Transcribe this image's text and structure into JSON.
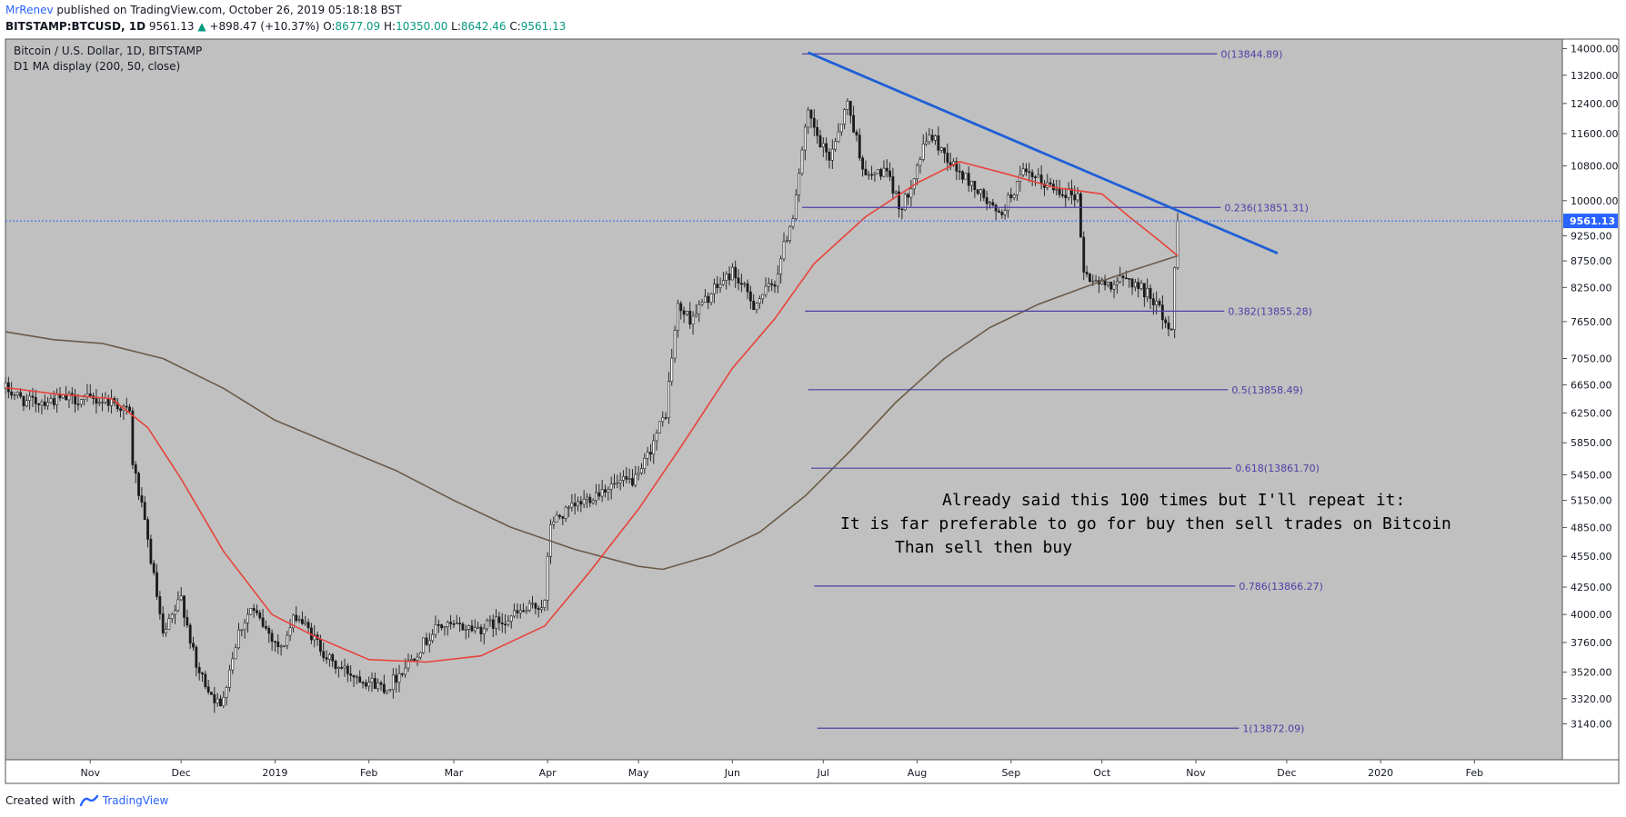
{
  "header": {
    "author": "MrRenev",
    "published": "published on TradingView.com, October 26, 2019 05:18:18 BST",
    "symbol": "BITSTAMP:BTCUSD, 1D",
    "last": "9561.13",
    "arrow": "▲",
    "change": "+898.47 (+10.37%)",
    "o_label": "O:",
    "o_val": "8677.09",
    "h_label": "H:",
    "h_val": "10350.00",
    "l_label": "L:",
    "l_val": "8642.46",
    "c_label": "C:",
    "c_val": "9561.13"
  },
  "legend": {
    "title": "Bitcoin / U.S. Dollar, 1D, BITSTAMP",
    "indicator": "D1 MA display (200, 50, close)"
  },
  "footer": {
    "created": "Created with",
    "brand": "TradingView"
  },
  "colors": {
    "plot_bg": "#c0c0c0",
    "candle": "#1a1a1a",
    "ma50": "#e8433a",
    "ma200": "#6b5a48",
    "trendline": "#1f5fd6",
    "fib": "#4b3fa6",
    "price_line": "#2962ff",
    "price_badge": "#2962ff"
  },
  "chart_data": {
    "type": "candlestick",
    "title": "Bitcoin / U.S. Dollar, 1D, BITSTAMP",
    "subtitle": "D1 MA display (200, 50, close)",
    "x_range": [
      "2018-10-04",
      "2020-03-01"
    ],
    "ylim": [
      2900,
      14300
    ],
    "y_ticks": [
      3140,
      3320,
      3520,
      3760,
      4000,
      4250,
      4550,
      4850,
      5150,
      5450,
      5850,
      6250,
      6650,
      7050,
      7650,
      8250,
      8750,
      9250,
      10000,
      10800,
      11600,
      12400,
      13200,
      14000
    ],
    "y_tick_labels": [
      "3140.00",
      "3320.00",
      "3520.00",
      "3760.00",
      "4000.00",
      "4250.00",
      "4550.00",
      "4850.00",
      "5150.00",
      "5450.00",
      "5850.00",
      "6250.00",
      "6650.00",
      "7050.00",
      "7650.00",
      "8250.00",
      "8750.00",
      "9250.00",
      "10000.00",
      "10800.00",
      "11600.00",
      "12400.00",
      "13200.00",
      "14000.00"
    ],
    "x_ticks": [
      {
        "date": "2018-11-01",
        "label": "Nov"
      },
      {
        "date": "2018-12-01",
        "label": "Dec"
      },
      {
        "date": "2019-01-01",
        "label": "2019"
      },
      {
        "date": "2019-02-01",
        "label": "Feb"
      },
      {
        "date": "2019-03-01",
        "label": "Mar"
      },
      {
        "date": "2019-04-01",
        "label": "Apr"
      },
      {
        "date": "2019-05-01",
        "label": "May"
      },
      {
        "date": "2019-06-01",
        "label": "Jun"
      },
      {
        "date": "2019-07-01",
        "label": "Jul"
      },
      {
        "date": "2019-08-01",
        "label": "Aug"
      },
      {
        "date": "2019-09-01",
        "label": "Sep"
      },
      {
        "date": "2019-10-01",
        "label": "Oct"
      },
      {
        "date": "2019-11-01",
        "label": "Nov"
      },
      {
        "date": "2019-12-01",
        "label": "Dec"
      },
      {
        "date": "2020-01-01",
        "label": "2020"
      },
      {
        "date": "2020-02-01",
        "label": "Feb"
      }
    ],
    "price_path": [
      [
        "2018-10-04",
        6600
      ],
      [
        "2018-10-11",
        6400
      ],
      [
        "2018-10-25",
        6450
      ],
      [
        "2018-11-08",
        6420
      ],
      [
        "2018-11-14",
        6250
      ],
      [
        "2018-11-15",
        5600
      ],
      [
        "2018-11-20",
        4700
      ],
      [
        "2018-11-25",
        3800
      ],
      [
        "2018-12-01",
        4150
      ],
      [
        "2018-12-06",
        3550
      ],
      [
        "2018-12-14",
        3250
      ],
      [
        "2018-12-20",
        3850
      ],
      [
        "2018-12-24",
        4050
      ],
      [
        "2019-01-03",
        3700
      ],
      [
        "2019-01-08",
        4000
      ],
      [
        "2019-01-20",
        3580
      ],
      [
        "2019-02-01",
        3450
      ],
      [
        "2019-02-07",
        3400
      ],
      [
        "2019-02-14",
        3600
      ],
      [
        "2019-02-24",
        3900
      ],
      [
        "2019-03-10",
        3880
      ],
      [
        "2019-03-31",
        4100
      ],
      [
        "2019-04-02",
        4900
      ],
      [
        "2019-04-20",
        5300
      ],
      [
        "2019-05-01",
        5400
      ],
      [
        "2019-05-10",
        6250
      ],
      [
        "2019-05-14",
        7900
      ],
      [
        "2019-05-18",
        7700
      ],
      [
        "2019-05-26",
        8200
      ],
      [
        "2019-06-01",
        8550
      ],
      [
        "2019-06-08",
        7950
      ],
      [
        "2019-06-15",
        8350
      ],
      [
        "2019-06-21",
        9700
      ],
      [
        "2019-06-26",
        12100
      ],
      [
        "2019-06-30",
        11300
      ],
      [
        "2019-07-03",
        11000
      ],
      [
        "2019-07-09",
        12400
      ],
      [
        "2019-07-15",
        10500
      ],
      [
        "2019-07-21",
        10700
      ],
      [
        "2019-07-27",
        9800
      ],
      [
        "2019-08-05",
        11600
      ],
      [
        "2019-08-14",
        10700
      ],
      [
        "2019-08-20",
        10300
      ],
      [
        "2019-08-28",
        9650
      ],
      [
        "2019-09-05",
        10600
      ],
      [
        "2019-09-15",
        10300
      ],
      [
        "2019-09-23",
        10100
      ],
      [
        "2019-09-25",
        8500
      ],
      [
        "2019-10-01",
        8300
      ],
      [
        "2019-10-10",
        8400
      ],
      [
        "2019-10-18",
        8050
      ],
      [
        "2019-10-23",
        7550
      ],
      [
        "2019-10-24",
        7450
      ],
      [
        "2019-10-25",
        8660
      ],
      [
        "2019-10-26",
        9561
      ]
    ],
    "ma50_path": [
      [
        "2018-10-04",
        6610
      ],
      [
        "2018-10-20",
        6520
      ],
      [
        "2018-11-08",
        6450
      ],
      [
        "2018-11-20",
        6050
      ],
      [
        "2018-12-01",
        5400
      ],
      [
        "2018-12-15",
        4600
      ],
      [
        "2018-12-31",
        4000
      ],
      [
        "2019-01-15",
        3800
      ],
      [
        "2019-02-01",
        3620
      ],
      [
        "2019-02-20",
        3600
      ],
      [
        "2019-03-10",
        3650
      ],
      [
        "2019-03-31",
        3900
      ],
      [
        "2019-04-15",
        4400
      ],
      [
        "2019-05-01",
        5050
      ],
      [
        "2019-05-15",
        5800
      ],
      [
        "2019-06-01",
        6900
      ],
      [
        "2019-06-15",
        7700
      ],
      [
        "2019-06-28",
        8700
      ],
      [
        "2019-07-15",
        9650
      ],
      [
        "2019-08-01",
        10400
      ],
      [
        "2019-08-15",
        10900
      ],
      [
        "2019-08-31",
        10600
      ],
      [
        "2019-09-15",
        10300
      ],
      [
        "2019-10-01",
        10150
      ],
      [
        "2019-10-10",
        9650
      ],
      [
        "2019-10-20",
        9150
      ],
      [
        "2019-10-26",
        8850
      ]
    ],
    "ma200_path": [
      [
        "2018-10-04",
        7480
      ],
      [
        "2018-10-20",
        7350
      ],
      [
        "2018-11-05",
        7290
      ],
      [
        "2018-11-25",
        7050
      ],
      [
        "2018-12-15",
        6600
      ],
      [
        "2019-01-01",
        6150
      ],
      [
        "2019-01-20",
        5830
      ],
      [
        "2019-02-10",
        5500
      ],
      [
        "2019-03-01",
        5150
      ],
      [
        "2019-03-20",
        4850
      ],
      [
        "2019-04-10",
        4620
      ],
      [
        "2019-05-01",
        4450
      ],
      [
        "2019-05-09",
        4420
      ],
      [
        "2019-05-25",
        4560
      ],
      [
        "2019-06-10",
        4800
      ],
      [
        "2019-06-25",
        5200
      ],
      [
        "2019-07-10",
        5750
      ],
      [
        "2019-07-25",
        6400
      ],
      [
        "2019-08-10",
        7050
      ],
      [
        "2019-08-25",
        7550
      ],
      [
        "2019-09-10",
        7950
      ],
      [
        "2019-09-25",
        8250
      ],
      [
        "2019-10-10",
        8550
      ],
      [
        "2019-10-26",
        8850
      ]
    ],
    "trendline": {
      "start": [
        "2019-06-26",
        13880
      ],
      "end": [
        "2019-11-28",
        8900
      ]
    },
    "fib_levels": [
      {
        "label": "0(13844.89)",
        "price": 13844.89,
        "y": 13840
      },
      {
        "label": "0.236(13851.31)",
        "price": 13851.31,
        "y": 9850
      },
      {
        "label": "0.382(13855.28)",
        "price": 13855.28,
        "y": 7830
      },
      {
        "label": "0.5(13858.49)",
        "price": 13858.49,
        "y": 6580
      },
      {
        "label": "0.618(13861.70)",
        "price": 13861.7,
        "y": 5530
      },
      {
        "label": "0.786(13866.27)",
        "price": 13866.27,
        "y": 4260
      },
      {
        "label": "1(13872.09)",
        "price": 13872.09,
        "y": 3110
      }
    ],
    "last_price": 9561.13,
    "last_price_label": "9561.13",
    "annotation": [
      "Already said this 100 times but I'll repeat it:",
      "It is far preferable to go for buy then sell trades on Bitcoin",
      "Than sell then buy"
    ]
  }
}
